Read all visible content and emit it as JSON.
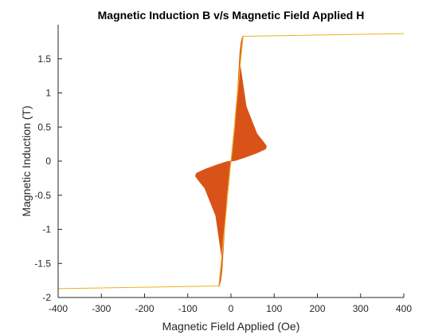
{
  "chart_data": {
    "type": "area",
    "title": "Magnetic Induction B v/s Magnetic Field Applied H",
    "xlabel": "Magnetic Field Applied (Oe)",
    "ylabel": "Magnetic Induction (T)",
    "xlim": [
      -400,
      400
    ],
    "ylim": [
      -2,
      2
    ],
    "xticks": [
      -400,
      -300,
      -200,
      -100,
      0,
      100,
      200,
      300,
      400
    ],
    "yticks": [
      -2,
      -1.5,
      -1,
      -0.5,
      0,
      0.5,
      1,
      1.5
    ],
    "xtick_labels": [
      "-400",
      "-300",
      "-200",
      "-100",
      "0",
      "100",
      "200",
      "300",
      "400"
    ],
    "ytick_labels": [
      "-2",
      "-1.5",
      "-1",
      "-0.5",
      "0",
      "0.5",
      "1",
      "1.5"
    ],
    "grid": false,
    "colors": {
      "fill": "#EDB120",
      "edge": "#D95319",
      "axis": "#262626"
    },
    "series": [
      {
        "color": "#D95319",
        "x": [
          0,
          5,
          10,
          14,
          18,
          21,
          24,
          26,
          28,
          20,
          35,
          60,
          75,
          82,
          80,
          60,
          30,
          10,
          0,
          -10,
          -30,
          -60,
          -80,
          -82,
          -75,
          -60,
          -35,
          -20,
          -28,
          -26,
          -24,
          -21,
          -18,
          -14,
          -10,
          -5,
          0
        ],
        "y": [
          0,
          0.2,
          0.5,
          0.9,
          1.3,
          1.6,
          1.75,
          1.8,
          1.84,
          1.45,
          0.8,
          0.4,
          0.28,
          0.22,
          0.18,
          0.12,
          0.05,
          0.01,
          0,
          -0.01,
          -0.05,
          -0.12,
          -0.18,
          -0.22,
          -0.28,
          -0.4,
          -0.8,
          -1.45,
          -1.84,
          -1.8,
          -1.75,
          -1.6,
          -1.3,
          -0.9,
          -0.5,
          -0.2,
          0
        ]
      },
      {
        "color": "#EDB120",
        "x": [
          -400,
          -28,
          -24,
          -18,
          -12,
          -7,
          -3,
          0,
          28,
          400,
          28,
          24,
          18,
          12,
          7,
          3,
          0,
          -28,
          -400
        ],
        "y": [
          -1.87,
          -1.83,
          -1.6,
          -1.2,
          -0.8,
          -0.45,
          -0.15,
          0,
          1.83,
          1.87,
          1.83,
          1.6,
          1.2,
          0.8,
          0.45,
          0.15,
          0,
          -1.83,
          -1.87
        ]
      }
    ]
  }
}
